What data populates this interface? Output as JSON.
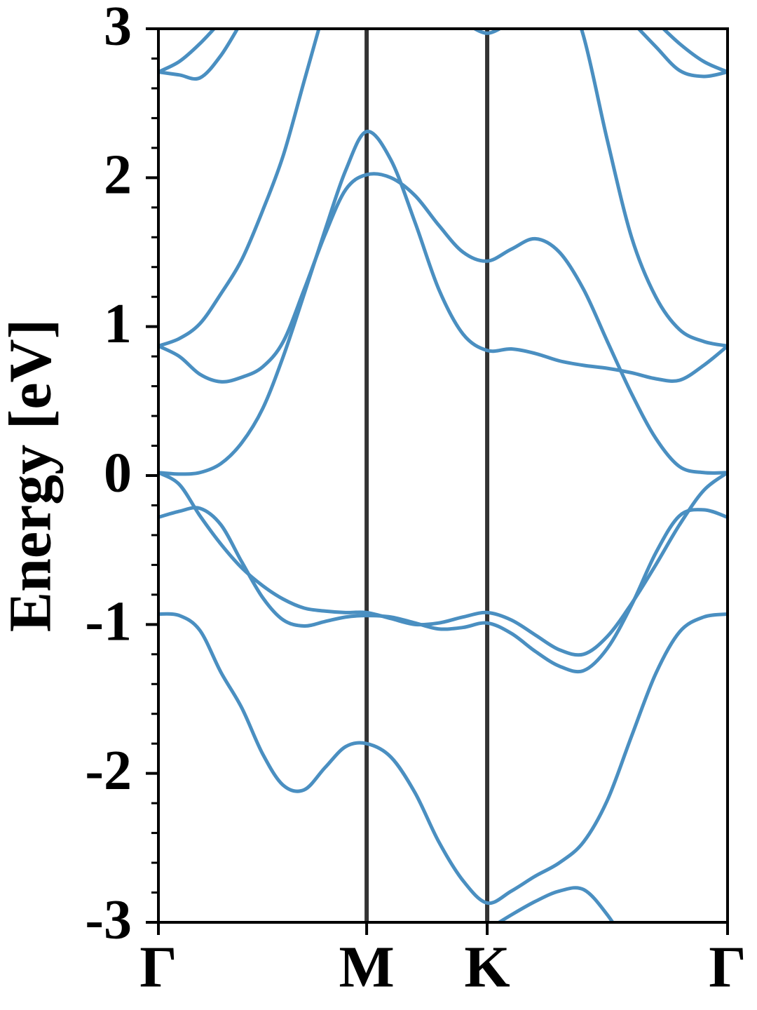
{
  "chart_data": {
    "type": "line",
    "y_label": "Energy [eV]",
    "color": "#4a8fc1",
    "tick_line_color": "#333333",
    "lines_at_inner_xticks": true,
    "xlim": [
      0,
      1.577
    ],
    "xticks": [
      {
        "value": 0,
        "label": "Γ"
      },
      {
        "value": 0.577,
        "label": "M"
      },
      {
        "value": 0.911,
        "label": "K"
      },
      {
        "value": 1.577,
        "label": "Γ"
      }
    ],
    "ylim": [
      -3,
      3
    ],
    "yticks": [
      -3,
      -2,
      -1,
      0,
      1,
      2,
      3
    ],
    "yminorticks": [
      -2.8,
      -2.6,
      -2.4,
      -2.2,
      -1.8,
      -1.6,
      -1.4,
      -1.2,
      -0.8,
      -0.6,
      -0.4,
      -0.2,
      0.2,
      0.4,
      0.6,
      0.8,
      1.2,
      1.4,
      1.6,
      1.8,
      2.2,
      2.4,
      2.6,
      2.8
    ],
    "x": [
      0,
      0.058,
      0.115,
      0.173,
      0.231,
      0.289,
      0.346,
      0.404,
      0.462,
      0.519,
      0.577,
      0.644,
      0.711,
      0.777,
      0.844,
      0.911,
      0.978,
      1.044,
      1.111,
      1.178,
      1.244,
      1.311,
      1.378,
      1.444,
      1.511,
      1.577
    ],
    "series": [
      {
        "values": [
          -0.93,
          -0.94,
          -1.04,
          -1.32,
          -1.56,
          -1.87,
          -2.08,
          -2.11,
          -1.96,
          -1.82,
          -1.8,
          -1.89,
          -2.13,
          -2.46,
          -2.72,
          -2.87,
          -2.79,
          -2.69,
          -2.6,
          -2.46,
          -2.18,
          -1.75,
          -1.33,
          -1.05,
          -0.95,
          -0.93
        ]
      },
      {
        "values": [
          null,
          null,
          null,
          null,
          null,
          null,
          null,
          null,
          null,
          null,
          null,
          null,
          null,
          null,
          null,
          -3.05,
          -2.95,
          -2.86,
          -2.79,
          -2.78,
          -2.95,
          -3.2,
          null,
          null,
          null,
          null
        ]
      },
      {
        "values": [
          0.02,
          -0.06,
          -0.27,
          -0.46,
          -0.62,
          -0.74,
          -0.83,
          -0.89,
          -0.91,
          -0.92,
          -0.92,
          -0.96,
          -1.0,
          -0.99,
          -0.95,
          -0.92,
          -0.97,
          -1.07,
          -1.17,
          -1.2,
          -1.08,
          -0.86,
          -0.6,
          -0.33,
          -0.1,
          0.02
        ]
      },
      {
        "values": [
          -0.28,
          -0.24,
          -0.22,
          -0.33,
          -0.58,
          -0.82,
          -0.97,
          -1.01,
          -0.98,
          -0.95,
          -0.94,
          -0.95,
          -0.99,
          -1.03,
          -1.02,
          -0.99,
          -1.06,
          -1.18,
          -1.28,
          -1.31,
          -1.16,
          -0.87,
          -0.52,
          -0.27,
          -0.23,
          -0.28
        ]
      },
      {
        "values": [
          0.02,
          0.01,
          0.02,
          0.08,
          0.22,
          0.45,
          0.8,
          1.22,
          1.65,
          2.05,
          2.31,
          2.12,
          1.7,
          1.25,
          0.95,
          0.84,
          0.85,
          0.82,
          0.77,
          0.74,
          0.72,
          0.69,
          0.65,
          0.64,
          0.74,
          0.87
        ]
      },
      {
        "values": [
          0.87,
          0.8,
          0.68,
          0.63,
          0.66,
          0.73,
          0.9,
          1.25,
          1.62,
          1.92,
          2.02,
          2.0,
          1.88,
          1.68,
          1.5,
          1.44,
          1.52,
          1.59,
          1.5,
          1.25,
          0.9,
          0.55,
          0.25,
          0.06,
          0.02,
          0.02
        ]
      },
      {
        "values": [
          0.87,
          0.92,
          1.02,
          1.22,
          1.45,
          1.78,
          2.15,
          2.65,
          3.15,
          null,
          null,
          null,
          null,
          null,
          null,
          null,
          null,
          null,
          3.4,
          2.95,
          2.25,
          1.6,
          1.2,
          0.98,
          0.9,
          0.87
        ]
      },
      {
        "values": [
          2.71,
          2.78,
          2.9,
          3.05,
          null,
          null,
          null,
          null,
          null,
          null,
          null,
          null,
          null,
          null,
          null,
          null,
          null,
          null,
          null,
          null,
          null,
          null,
          3.05,
          2.9,
          2.78,
          2.71
        ]
      },
      {
        "values": [
          2.71,
          2.69,
          2.67,
          2.82,
          3.05,
          null,
          null,
          null,
          null,
          null,
          null,
          null,
          null,
          null,
          null,
          null,
          null,
          null,
          null,
          null,
          null,
          3.05,
          2.88,
          2.72,
          2.68,
          2.71
        ]
      },
      {
        "values": [
          null,
          null,
          null,
          null,
          null,
          null,
          null,
          null,
          null,
          null,
          null,
          null,
          null,
          null,
          3.05,
          2.97,
          3.05,
          null,
          null,
          null,
          null,
          null,
          null,
          null,
          null,
          null
        ]
      }
    ]
  }
}
